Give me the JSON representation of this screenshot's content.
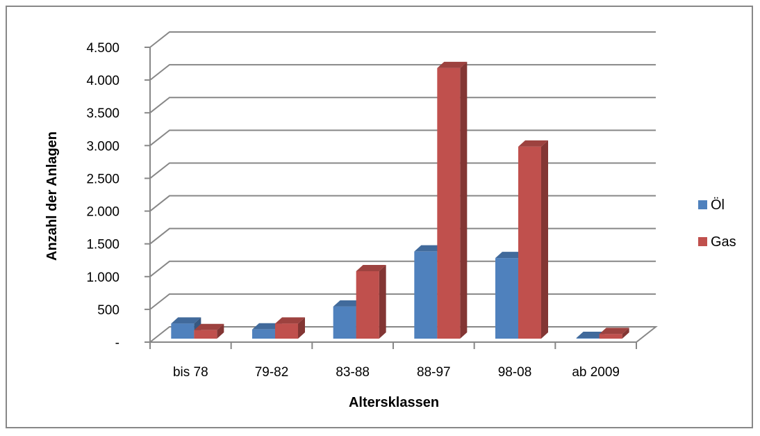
{
  "chart_data": {
    "type": "bar",
    "categories": [
      "bis 78",
      "79-82",
      "83-88",
      "88-97",
      "98-08",
      "ab 2009"
    ],
    "series": [
      {
        "name": "Öl",
        "values": [
          230,
          140,
          490,
          1330,
          1230,
          10
        ],
        "color": "#4F81BD"
      },
      {
        "name": "Gas",
        "values": [
          130,
          230,
          1030,
          4130,
          2930,
          70
        ],
        "color": "#C0504D"
      }
    ],
    "xlabel": "Altersklassen",
    "ylabel": "Anzahl der Anlagen",
    "ylim": [
      0,
      4500
    ],
    "yticks": [
      {
        "value": 0,
        "label": "-"
      },
      {
        "value": 500,
        "label": "500"
      },
      {
        "value": 1000,
        "label": "1.000"
      },
      {
        "value": 1500,
        "label": "1.500"
      },
      {
        "value": 2000,
        "label": "2.000"
      },
      {
        "value": 2500,
        "label": "2.500"
      },
      {
        "value": 3000,
        "label": "3.000"
      },
      {
        "value": 3500,
        "label": "3.500"
      },
      {
        "value": 4000,
        "label": "4.000"
      },
      {
        "value": 4500,
        "label": "4.500"
      }
    ],
    "grid": true,
    "legend_position": "right",
    "style": "3d-clustered-column"
  }
}
